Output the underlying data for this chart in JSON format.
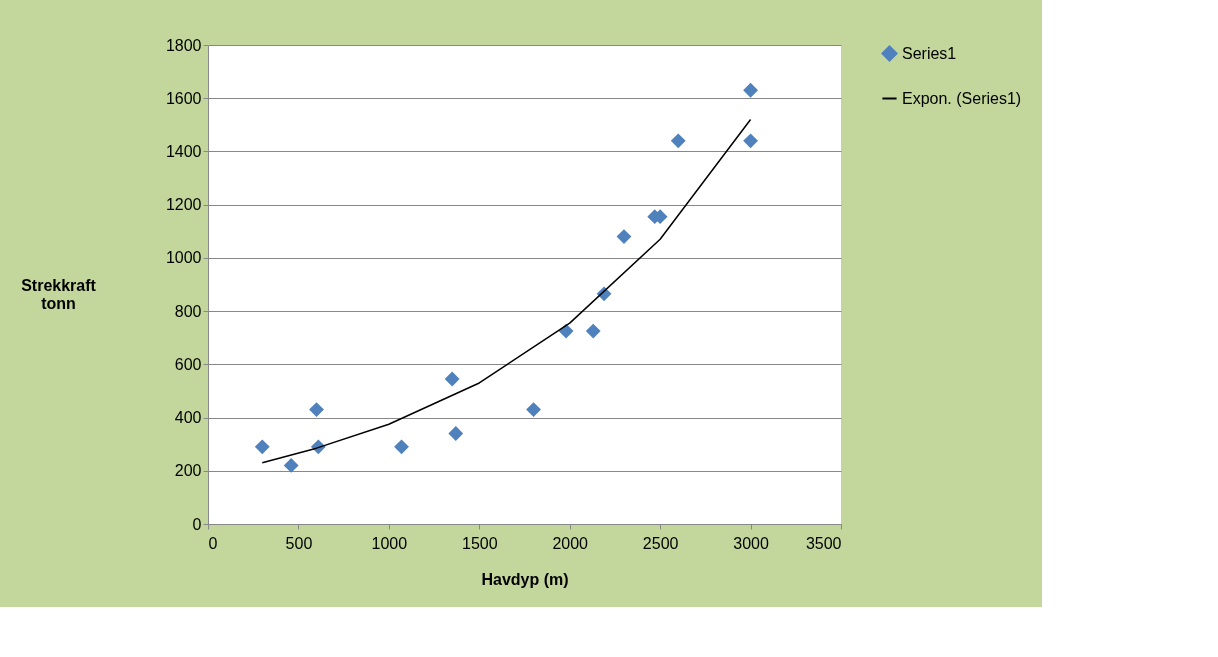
{
  "chart_data": {
    "type": "scatter",
    "xlabel": "Havdyp (m)",
    "ylabel": "Strekkraft tonn",
    "xlim": [
      0,
      3500
    ],
    "xticks": [
      0,
      500,
      1000,
      1500,
      2000,
      2500,
      3000,
      3500
    ],
    "ylim": [
      0,
      1800
    ],
    "yticks": [
      0,
      200,
      400,
      600,
      800,
      1000,
      1200,
      1400,
      1600,
      1800
    ],
    "grid": "y",
    "legend": "right",
    "series": [
      {
        "name": "Series1",
        "marker": "diamond",
        "color": "#4f81bd",
        "x": [
          300,
          460,
          600,
          610,
          1070,
          1350,
          1370,
          1800,
          1980,
          2130,
          2190,
          2300,
          2470,
          2500,
          2600,
          3000,
          3000
        ],
        "values": [
          290,
          220,
          430,
          290,
          290,
          545,
          340,
          430,
          725,
          725,
          865,
          1080,
          1155,
          1155,
          1440,
          1630,
          1440
        ]
      },
      {
        "name": "Expon. (Series1)",
        "type": "line",
        "color": "#000000",
        "line_style": "solid",
        "x": [
          300,
          600,
          1000,
          1500,
          2000,
          2500,
          3000
        ],
        "values": [
          230,
          285,
          375,
          530,
          755,
          1070,
          1520
        ]
      }
    ]
  }
}
